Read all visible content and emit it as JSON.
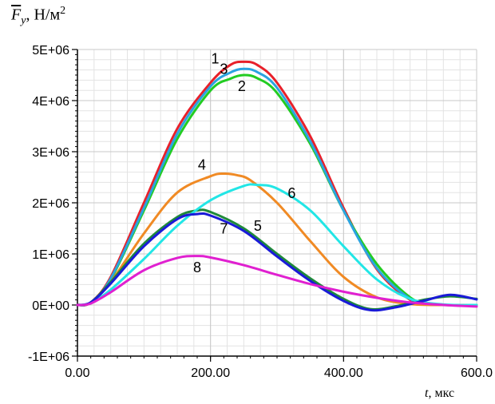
{
  "chart_data": {
    "type": "line",
    "y_axis_label": {
      "symbol": "F",
      "subscript": "y",
      "unit": ", Н/м",
      "unit_exp": "2"
    },
    "x_axis_label": {
      "symbol": "t",
      "unit": ", мкс"
    },
    "xlim": [
      0,
      600
    ],
    "ylim": [
      -1000000,
      5000000
    ],
    "x_ticks": [
      0,
      200,
      400,
      600
    ],
    "x_tick_labels": [
      "0.00",
      "200.00",
      "400.00",
      "600.0"
    ],
    "y_ticks": [
      -1000000,
      0,
      1000000,
      2000000,
      3000000,
      4000000,
      5000000
    ],
    "y_tick_labels": [
      "-1E+06",
      "0E+00",
      "1E+06",
      "2E+06",
      "3E+06",
      "4E+06",
      "5E+06"
    ],
    "grid": true,
    "series": [
      {
        "name": "1",
        "color": "#e8202a",
        "x": [
          0,
          20,
          50,
          100,
          150,
          200,
          230,
          250,
          270,
          300,
          350,
          400,
          450,
          500,
          530,
          560,
          600
        ],
        "y": [
          0,
          50000,
          550000,
          2000000,
          3450000,
          4350000,
          4700000,
          4760000,
          4700000,
          4350000,
          3300000,
          1900000,
          700000,
          100000,
          10000,
          0,
          0
        ]
      },
      {
        "name": "2",
        "color": "#22cc22",
        "x": [
          0,
          20,
          50,
          100,
          150,
          200,
          230,
          250,
          270,
          300,
          350,
          400,
          450,
          500,
          530,
          560,
          600
        ],
        "y": [
          0,
          50000,
          500000,
          1850000,
          3250000,
          4200000,
          4430000,
          4500000,
          4440000,
          4150000,
          3150000,
          1850000,
          800000,
          150000,
          20000,
          0,
          0
        ]
      },
      {
        "name": "3",
        "color": "#2ba3e0",
        "x": [
          0,
          20,
          50,
          100,
          150,
          200,
          230,
          250,
          270,
          300,
          350,
          400,
          450,
          500,
          530,
          560,
          600
        ],
        "y": [
          0,
          50000,
          520000,
          1900000,
          3350000,
          4280000,
          4550000,
          4620000,
          4560000,
          4250000,
          3200000,
          1850000,
          720000,
          120000,
          15000,
          0,
          0
        ]
      },
      {
        "name": "4",
        "color": "#f08a24",
        "x": [
          0,
          20,
          50,
          100,
          150,
          200,
          220,
          240,
          260,
          300,
          350,
          400,
          450,
          500,
          550,
          600
        ],
        "y": [
          0,
          50000,
          450000,
          1400000,
          2200000,
          2520000,
          2570000,
          2540000,
          2440000,
          2000000,
          1250000,
          550000,
          150000,
          20000,
          0,
          0
        ]
      },
      {
        "name": "5",
        "color": "#1f8a3a",
        "x": [
          0,
          20,
          50,
          100,
          150,
          180,
          200,
          250,
          300,
          350,
          400,
          440,
          480,
          520,
          560,
          600
        ],
        "y": [
          0,
          50000,
          450000,
          1200000,
          1720000,
          1850000,
          1820000,
          1500000,
          1000000,
          520000,
          120000,
          -80000,
          -20000,
          100000,
          170000,
          120000
        ]
      },
      {
        "name": "6",
        "color": "#22e6e6",
        "x": [
          0,
          20,
          50,
          100,
          150,
          200,
          250,
          270,
          300,
          350,
          400,
          450,
          500,
          550,
          600
        ],
        "y": [
          0,
          40000,
          300000,
          900000,
          1550000,
          2050000,
          2330000,
          2350000,
          2280000,
          1850000,
          1150000,
          500000,
          120000,
          10000,
          0
        ]
      },
      {
        "name": "7",
        "color": "#1a1ad8",
        "x": [
          0,
          20,
          50,
          100,
          150,
          180,
          200,
          250,
          300,
          350,
          400,
          440,
          480,
          520,
          560,
          600
        ],
        "y": [
          0,
          50000,
          420000,
          1150000,
          1680000,
          1780000,
          1750000,
          1450000,
          950000,
          470000,
          80000,
          -100000,
          -40000,
          80000,
          200000,
          110000
        ]
      },
      {
        "name": "8",
        "color": "#e020d0",
        "x": [
          0,
          20,
          50,
          100,
          150,
          180,
          200,
          250,
          300,
          350,
          400,
          450,
          500,
          550,
          600
        ],
        "y": [
          0,
          30000,
          250000,
          680000,
          920000,
          960000,
          930000,
          780000,
          590000,
          410000,
          260000,
          140000,
          50000,
          0,
          -30000
        ]
      }
    ],
    "curve_labels": [
      {
        "text": "1",
        "x": 207,
        "y": 4730000
      },
      {
        "text": "3",
        "x": 220,
        "y": 4520000
      },
      {
        "text": "2",
        "x": 247,
        "y": 4190000
      },
      {
        "text": "4",
        "x": 187,
        "y": 2650000
      },
      {
        "text": "6",
        "x": 322,
        "y": 2090000
      },
      {
        "text": "7",
        "x": 220,
        "y": 1400000
      },
      {
        "text": "5",
        "x": 271,
        "y": 1450000
      },
      {
        "text": "8",
        "x": 180,
        "y": 640000
      }
    ]
  }
}
